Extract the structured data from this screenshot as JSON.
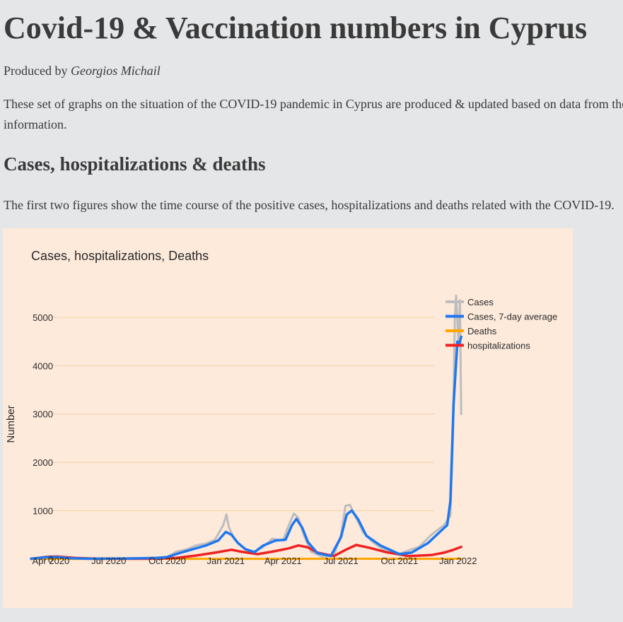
{
  "header": {
    "title": "Covid-19 & Vaccination numbers in Cyprus",
    "byline_prefix": "Produced by ",
    "byline_author": "Georgios Michail",
    "intro_line1": "These set of graphs on the situation of the COVID-19 pandemic in Cyprus are produced & updated based on data from the",
    "intro_line2": "information."
  },
  "section": {
    "heading": "Cases, hospitalizations & deaths",
    "description": "The first two figures show the time course of the positive cases, hospitalizations and deaths related with the COVID-19."
  },
  "chart_data": {
    "type": "line",
    "title": "Cases, hospitalizations, Deaths",
    "xlabel": "",
    "ylabel": "Number",
    "x_ticks": [
      "Apr 2020",
      "Jul 2020",
      "Oct 2020",
      "Jan 2021",
      "Apr 2021",
      "Jul 2021",
      "Oct 2021",
      "Jan 2022"
    ],
    "y_ticks": [
      0,
      1000,
      2000,
      3000,
      4000,
      5000
    ],
    "xlim": [
      "2020-03-01",
      "2022-01-08"
    ],
    "ylim": [
      -120,
      5600
    ],
    "grid": true,
    "legend_position": "top-right",
    "colors": {
      "background": "#fdeadb",
      "grid": "#f2d3a6",
      "cases": "#bdbdbd",
      "cases_avg": "#1f77f0",
      "deaths": "#ffa500",
      "hospitalizations": "#ee2222"
    },
    "series": [
      {
        "name": "Cases",
        "points": [
          [
            "2020-03-01",
            5
          ],
          [
            "2020-03-20",
            40
          ],
          [
            "2020-04-01",
            60
          ],
          [
            "2020-04-15",
            40
          ],
          [
            "2020-05-01",
            15
          ],
          [
            "2020-06-01",
            5
          ],
          [
            "2020-07-01",
            5
          ],
          [
            "2020-08-01",
            15
          ],
          [
            "2020-09-01",
            20
          ],
          [
            "2020-10-01",
            40
          ],
          [
            "2020-10-15",
            150
          ],
          [
            "2020-11-01",
            200
          ],
          [
            "2020-11-15",
            280
          ],
          [
            "2020-12-01",
            320
          ],
          [
            "2020-12-15",
            400
          ],
          [
            "2020-12-28",
            700
          ],
          [
            "2021-01-02",
            920
          ],
          [
            "2021-01-06",
            650
          ],
          [
            "2021-01-15",
            400
          ],
          [
            "2021-02-01",
            200
          ],
          [
            "2021-02-15",
            150
          ],
          [
            "2021-03-01",
            250
          ],
          [
            "2021-03-15",
            420
          ],
          [
            "2021-04-01",
            380
          ],
          [
            "2021-04-10",
            700
          ],
          [
            "2021-04-18",
            940
          ],
          [
            "2021-04-25",
            850
          ],
          [
            "2021-05-05",
            450
          ],
          [
            "2021-05-15",
            150
          ],
          [
            "2021-06-01",
            50
          ],
          [
            "2021-06-20",
            80
          ],
          [
            "2021-07-01",
            500
          ],
          [
            "2021-07-08",
            1100
          ],
          [
            "2021-07-15",
            1120
          ],
          [
            "2021-07-25",
            850
          ],
          [
            "2021-08-05",
            550
          ],
          [
            "2021-08-20",
            350
          ],
          [
            "2021-09-05",
            200
          ],
          [
            "2021-10-01",
            110
          ],
          [
            "2021-11-01",
            250
          ],
          [
            "2021-11-20",
            500
          ],
          [
            "2021-12-10",
            700
          ],
          [
            "2021-12-20",
            900
          ],
          [
            "2021-12-24",
            2500
          ],
          [
            "2021-12-27",
            5000
          ],
          [
            "2021-12-29",
            5450
          ],
          [
            "2022-01-02",
            4400
          ],
          [
            "2022-01-04",
            5350
          ],
          [
            "2022-01-06",
            3000
          ]
        ]
      },
      {
        "name": "Cases, 7-day average",
        "points": [
          [
            "2020-03-01",
            5
          ],
          [
            "2020-03-25",
            35
          ],
          [
            "2020-04-10",
            40
          ],
          [
            "2020-05-01",
            15
          ],
          [
            "2020-06-01",
            5
          ],
          [
            "2020-08-01",
            10
          ],
          [
            "2020-09-15",
            20
          ],
          [
            "2020-10-01",
            40
          ],
          [
            "2020-10-20",
            120
          ],
          [
            "2020-11-10",
            200
          ],
          [
            "2020-12-01",
            280
          ],
          [
            "2020-12-20",
            380
          ],
          [
            "2021-01-01",
            560
          ],
          [
            "2021-01-10",
            500
          ],
          [
            "2021-01-20",
            330
          ],
          [
            "2021-02-01",
            200
          ],
          [
            "2021-02-15",
            140
          ],
          [
            "2021-03-01",
            280
          ],
          [
            "2021-03-20",
            380
          ],
          [
            "2021-04-05",
            400
          ],
          [
            "2021-04-15",
            700
          ],
          [
            "2021-04-22",
            830
          ],
          [
            "2021-05-01",
            650
          ],
          [
            "2021-05-10",
            350
          ],
          [
            "2021-05-25",
            120
          ],
          [
            "2021-06-15",
            60
          ],
          [
            "2021-07-01",
            450
          ],
          [
            "2021-07-10",
            920
          ],
          [
            "2021-07-18",
            1000
          ],
          [
            "2021-07-28",
            820
          ],
          [
            "2021-08-10",
            480
          ],
          [
            "2021-09-01",
            280
          ],
          [
            "2021-10-01",
            100
          ],
          [
            "2021-10-20",
            130
          ],
          [
            "2021-11-15",
            330
          ],
          [
            "2021-12-01",
            530
          ],
          [
            "2021-12-15",
            700
          ],
          [
            "2021-12-20",
            1200
          ],
          [
            "2021-12-25",
            3200
          ],
          [
            "2021-12-31",
            4500
          ],
          [
            "2022-01-03",
            4450
          ],
          [
            "2022-01-06",
            4600
          ]
        ]
      },
      {
        "name": "Deaths",
        "points": [
          [
            "2020-03-01",
            0
          ],
          [
            "2020-06-01",
            1
          ],
          [
            "2020-12-01",
            3
          ],
          [
            "2021-04-01",
            3
          ],
          [
            "2021-08-01",
            4
          ],
          [
            "2021-12-01",
            3
          ],
          [
            "2022-01-06",
            5
          ]
        ]
      },
      {
        "name": "hospitalizations",
        "points": [
          [
            "2020-03-01",
            5
          ],
          [
            "2020-03-25",
            40
          ],
          [
            "2020-04-10",
            50
          ],
          [
            "2020-05-10",
            20
          ],
          [
            "2020-06-15",
            5
          ],
          [
            "2020-09-01",
            5
          ],
          [
            "2020-10-15",
            20
          ],
          [
            "2020-11-15",
            70
          ],
          [
            "2020-12-15",
            130
          ],
          [
            "2021-01-10",
            190
          ],
          [
            "2021-01-25",
            150
          ],
          [
            "2021-02-20",
            100
          ],
          [
            "2021-03-15",
            150
          ],
          [
            "2021-04-10",
            220
          ],
          [
            "2021-04-25",
            280
          ],
          [
            "2021-05-10",
            240
          ],
          [
            "2021-05-25",
            130
          ],
          [
            "2021-06-20",
            60
          ],
          [
            "2021-07-10",
            200
          ],
          [
            "2021-07-25",
            290
          ],
          [
            "2021-08-15",
            230
          ],
          [
            "2021-09-10",
            140
          ],
          [
            "2021-10-15",
            60
          ],
          [
            "2021-11-20",
            80
          ],
          [
            "2021-12-10",
            130
          ],
          [
            "2021-12-25",
            190
          ],
          [
            "2022-01-06",
            250
          ]
        ]
      }
    ]
  }
}
